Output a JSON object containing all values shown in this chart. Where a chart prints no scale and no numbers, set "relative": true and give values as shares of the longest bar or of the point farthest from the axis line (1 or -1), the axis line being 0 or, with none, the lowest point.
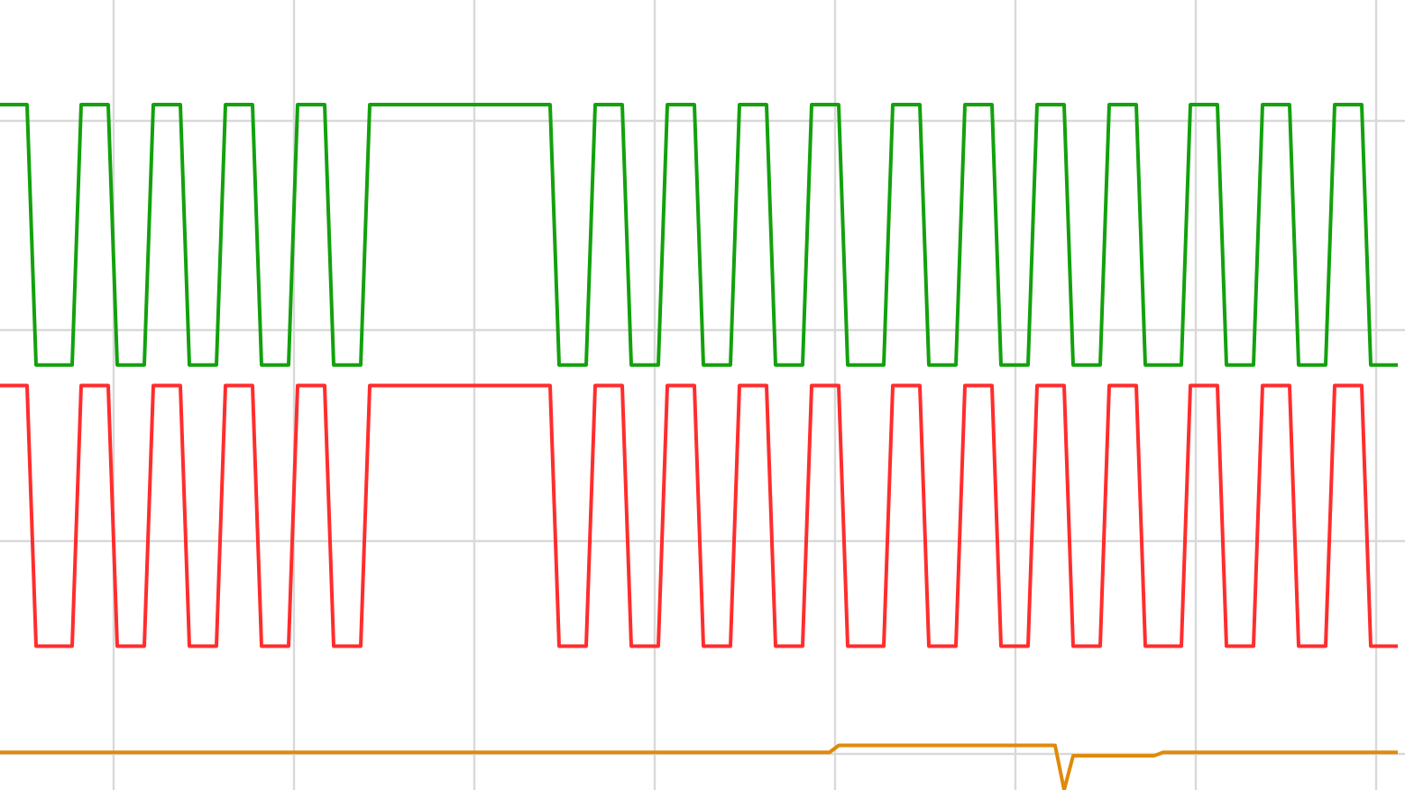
{
  "chart_data": {
    "type": "line",
    "relative": true,
    "grid": true,
    "marker": "none",
    "line_style": "solid",
    "categories": [
      null,
      null,
      null,
      null,
      null,
      null,
      null,
      null,
      null,
      null,
      null,
      null,
      null,
      null,
      null,
      null,
      null,
      null,
      null,
      null,
      null,
      null,
      null,
      null,
      null,
      null,
      null,
      null,
      null,
      null,
      null,
      null,
      null,
      null,
      null,
      null,
      null,
      null,
      null,
      null,
      null,
      null,
      null,
      null,
      null,
      null,
      null,
      null,
      null,
      null,
      null,
      null,
      null,
      null,
      null,
      null,
      null,
      null,
      null,
      null,
      null,
      null,
      null,
      null,
      null,
      null,
      null,
      null,
      null,
      null,
      null,
      null,
      null,
      null,
      null,
      null,
      null,
      null,
      null,
      null,
      null,
      null,
      null,
      null,
      null,
      null,
      null,
      null,
      null,
      null,
      null,
      null,
      null,
      null,
      null,
      null,
      null,
      null,
      null,
      null,
      null,
      null,
      null,
      null,
      null,
      null,
      null,
      null,
      null,
      null,
      null,
      null,
      null,
      null,
      null,
      null,
      null,
      null,
      null,
      null,
      null,
      null,
      null,
      null,
      null,
      null,
      null,
      null,
      null,
      null,
      null,
      null,
      null,
      null,
      null,
      null,
      null,
      null,
      null,
      null,
      null,
      null,
      null,
      null,
      null,
      null,
      null,
      null,
      null,
      null,
      null,
      null,
      null,
      null,
      null,
      null
    ],
    "series": [
      {
        "color": "#13a10e",
        "values": [
          1,
          1,
          1,
          1,
          0.62,
          0.62,
          0.62,
          0.62,
          0.62,
          1,
          1,
          1,
          1,
          0.62,
          0.62,
          0.62,
          0.62,
          1,
          1,
          1,
          1,
          0.62,
          0.62,
          0.62,
          0.62,
          1,
          1,
          1,
          1,
          0.62,
          0.62,
          0.62,
          0.62,
          1,
          1,
          1,
          1,
          0.62,
          0.62,
          0.62,
          0.62,
          1,
          1,
          1,
          1,
          1,
          1,
          1,
          1,
          1,
          1,
          1,
          1,
          1,
          1,
          1,
          1,
          1,
          1,
          1,
          1,
          1,
          0.62,
          0.62,
          0.62,
          0.62,
          1,
          1,
          1,
          1,
          0.62,
          0.62,
          0.62,
          0.62,
          1,
          1,
          1,
          1,
          0.62,
          0.62,
          0.62,
          0.62,
          1,
          1,
          1,
          1,
          0.62,
          0.62,
          0.62,
          0.62,
          1,
          1,
          1,
          1,
          0.62,
          0.62,
          0.62,
          0.62,
          0.62,
          1,
          1,
          1,
          1,
          0.62,
          0.62,
          0.62,
          0.62,
          1,
          1,
          1,
          1,
          0.62,
          0.62,
          0.62,
          0.62,
          1,
          1,
          1,
          1,
          0.62,
          0.62,
          0.62,
          0.62,
          1,
          1,
          1,
          1,
          0.62,
          0.62,
          0.62,
          0.62,
          0.62,
          1,
          1,
          1,
          1,
          0.62,
          0.62,
          0.62,
          0.62,
          1,
          1,
          1,
          1,
          0.62,
          0.62,
          0.62,
          0.62,
          1,
          1,
          1,
          1,
          0.62,
          0.62,
          0.62,
          0.62
        ]
      },
      {
        "color": "#ff2d2d",
        "values": [
          0.59,
          0.59,
          0.59,
          0.59,
          0.21,
          0.21,
          0.21,
          0.21,
          0.21,
          0.59,
          0.59,
          0.59,
          0.59,
          0.21,
          0.21,
          0.21,
          0.21,
          0.59,
          0.59,
          0.59,
          0.59,
          0.21,
          0.21,
          0.21,
          0.21,
          0.59,
          0.59,
          0.59,
          0.59,
          0.21,
          0.21,
          0.21,
          0.21,
          0.59,
          0.59,
          0.59,
          0.59,
          0.21,
          0.21,
          0.21,
          0.21,
          0.59,
          0.59,
          0.59,
          0.59,
          0.59,
          0.59,
          0.59,
          0.59,
          0.59,
          0.59,
          0.59,
          0.59,
          0.59,
          0.59,
          0.59,
          0.59,
          0.59,
          0.59,
          0.59,
          0.59,
          0.59,
          0.21,
          0.21,
          0.21,
          0.21,
          0.59,
          0.59,
          0.59,
          0.59,
          0.21,
          0.21,
          0.21,
          0.21,
          0.59,
          0.59,
          0.59,
          0.59,
          0.21,
          0.21,
          0.21,
          0.21,
          0.59,
          0.59,
          0.59,
          0.59,
          0.21,
          0.21,
          0.21,
          0.21,
          0.59,
          0.59,
          0.59,
          0.59,
          0.21,
          0.21,
          0.21,
          0.21,
          0.21,
          0.59,
          0.59,
          0.59,
          0.59,
          0.21,
          0.21,
          0.21,
          0.21,
          0.59,
          0.59,
          0.59,
          0.59,
          0.21,
          0.21,
          0.21,
          0.21,
          0.59,
          0.59,
          0.59,
          0.59,
          0.21,
          0.21,
          0.21,
          0.21,
          0.59,
          0.59,
          0.59,
          0.59,
          0.21,
          0.21,
          0.21,
          0.21,
          0.21,
          0.59,
          0.59,
          0.59,
          0.59,
          0.21,
          0.21,
          0.21,
          0.21,
          0.59,
          0.59,
          0.59,
          0.59,
          0.21,
          0.21,
          0.21,
          0.21,
          0.59,
          0.59,
          0.59,
          0.59,
          0.21,
          0.21,
          0.21,
          0.21
        ]
      },
      {
        "color": "#e08a0b",
        "values": [
          0.055,
          0.055,
          0.055,
          0.055,
          0.055,
          0.055,
          0.055,
          0.055,
          0.055,
          0.055,
          0.055,
          0.055,
          0.055,
          0.055,
          0.055,
          0.055,
          0.055,
          0.055,
          0.055,
          0.055,
          0.055,
          0.055,
          0.055,
          0.055,
          0.055,
          0.055,
          0.055,
          0.055,
          0.055,
          0.055,
          0.055,
          0.055,
          0.055,
          0.055,
          0.055,
          0.055,
          0.055,
          0.055,
          0.055,
          0.055,
          0.055,
          0.055,
          0.055,
          0.055,
          0.055,
          0.055,
          0.055,
          0.055,
          0.055,
          0.055,
          0.055,
          0.055,
          0.055,
          0.055,
          0.055,
          0.055,
          0.055,
          0.055,
          0.055,
          0.055,
          0.055,
          0.055,
          0.055,
          0.055,
          0.055,
          0.055,
          0.055,
          0.055,
          0.055,
          0.055,
          0.055,
          0.055,
          0.055,
          0.055,
          0.055,
          0.055,
          0.055,
          0.055,
          0.055,
          0.055,
          0.055,
          0.055,
          0.055,
          0.055,
          0.055,
          0.055,
          0.055,
          0.055,
          0.055,
          0.055,
          0.055,
          0.055,
          0.055,
          0.065,
          0.065,
          0.065,
          0.065,
          0.065,
          0.065,
          0.065,
          0.065,
          0.065,
          0.065,
          0.065,
          0.065,
          0.065,
          0.065,
          0.065,
          0.065,
          0.065,
          0.065,
          0.065,
          0.065,
          0.065,
          0.065,
          0.065,
          0.065,
          0.065,
          0,
          0.05,
          0.05,
          0.05,
          0.05,
          0.05,
          0.05,
          0.05,
          0.05,
          0.05,
          0.05,
          0.055,
          0.055,
          0.055,
          0.055,
          0.055,
          0.055,
          0.055,
          0.055,
          0.055,
          0.055,
          0.055,
          0.055,
          0.055,
          0.055,
          0.055,
          0.055,
          0.055,
          0.055,
          0.055,
          0.055,
          0.055,
          0.055,
          0.055,
          0.055,
          0.055,
          0.055,
          0.055
        ]
      }
    ]
  }
}
